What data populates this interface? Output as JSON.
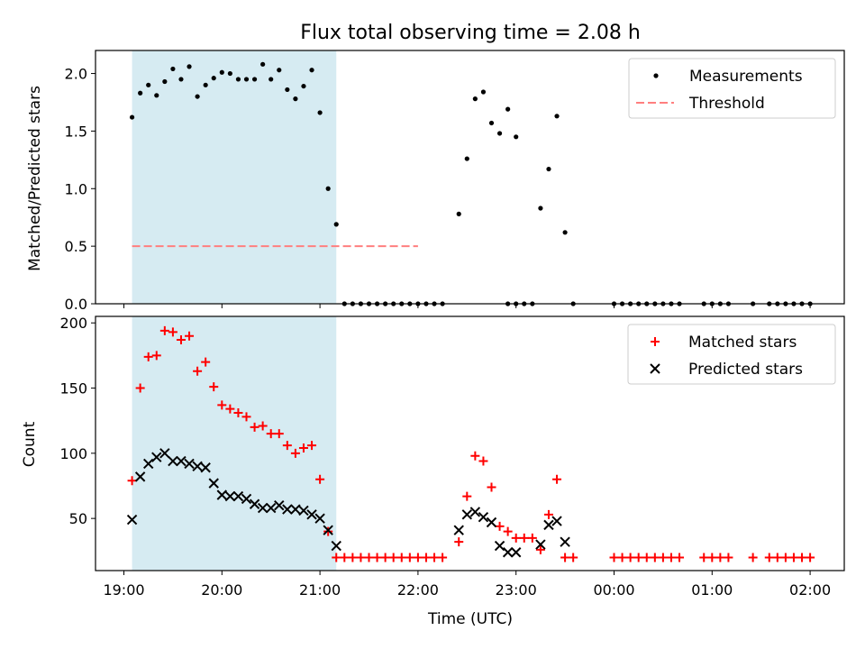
{
  "title": "Flux total observing time = 2.08 h",
  "chart_data": [
    {
      "type": "scatter",
      "ylabel": "Matched/Predicted stars",
      "ylim": [
        0,
        2.2
      ],
      "yticks": [
        0.0,
        0.5,
        1.0,
        1.5,
        2.0
      ],
      "ytick_labels": [
        "0.0",
        "0.5",
        "1.0",
        "1.5",
        "2.0"
      ],
      "legend": {
        "placement": "top-right",
        "entries": [
          "Measurements",
          "Threshold"
        ]
      },
      "highlight_span": [
        "19:05",
        "21:10"
      ],
      "threshold": {
        "value": 0.5,
        "x_range": [
          "19:05",
          "22:00"
        ],
        "color": "#ff7f7f",
        "style": "dashed"
      },
      "series": [
        {
          "name": "Measurements",
          "color": "#000000",
          "marker": "dot",
          "points": [
            [
              "19:05",
              1.62
            ],
            [
              "19:10",
              1.83
            ],
            [
              "19:15",
              1.9
            ],
            [
              "19:20",
              1.81
            ],
            [
              "19:25",
              1.93
            ],
            [
              "19:30",
              2.04
            ],
            [
              "19:35",
              1.95
            ],
            [
              "19:40",
              2.06
            ],
            [
              "19:45",
              1.8
            ],
            [
              "19:50",
              1.9
            ],
            [
              "19:55",
              1.96
            ],
            [
              "20:00",
              2.01
            ],
            [
              "20:05",
              2.0
            ],
            [
              "20:10",
              1.95
            ],
            [
              "20:15",
              1.95
            ],
            [
              "20:20",
              1.95
            ],
            [
              "20:25",
              2.08
            ],
            [
              "20:30",
              1.95
            ],
            [
              "20:35",
              2.03
            ],
            [
              "20:40",
              1.86
            ],
            [
              "20:45",
              1.78
            ],
            [
              "20:50",
              1.89
            ],
            [
              "20:55",
              2.03
            ],
            [
              "21:00",
              1.66
            ],
            [
              "21:05",
              1.0
            ],
            [
              "21:10",
              0.69
            ],
            [
              "21:15",
              0
            ],
            [
              "21:20",
              0
            ],
            [
              "21:25",
              0
            ],
            [
              "21:30",
              0
            ],
            [
              "21:35",
              0
            ],
            [
              "21:40",
              0
            ],
            [
              "21:45",
              0
            ],
            [
              "21:50",
              0
            ],
            [
              "21:55",
              0
            ],
            [
              "22:00",
              0
            ],
            [
              "22:05",
              0
            ],
            [
              "22:10",
              0
            ],
            [
              "22:15",
              0
            ],
            [
              "22:25",
              0.78
            ],
            [
              "22:30",
              1.26
            ],
            [
              "22:35",
              1.78
            ],
            [
              "22:40",
              1.84
            ],
            [
              "22:45",
              1.57
            ],
            [
              "22:50",
              1.48
            ],
            [
              "22:55",
              1.69
            ],
            [
              "23:00",
              1.45
            ],
            [
              "22:55",
              0
            ],
            [
              "23:00",
              0
            ],
            [
              "23:05",
              0
            ],
            [
              "23:10",
              0
            ],
            [
              "23:15",
              0.83
            ],
            [
              "23:20",
              1.17
            ],
            [
              "23:25",
              1.63
            ],
            [
              "23:30",
              0.62
            ],
            [
              "23:35",
              0
            ],
            [
              "00:00",
              0
            ],
            [
              "00:05",
              0
            ],
            [
              "00:10",
              0
            ],
            [
              "00:15",
              0
            ],
            [
              "00:20",
              0
            ],
            [
              "00:25",
              0
            ],
            [
              "00:30",
              0
            ],
            [
              "00:35",
              0
            ],
            [
              "00:40",
              0
            ],
            [
              "00:55",
              0
            ],
            [
              "01:00",
              0
            ],
            [
              "01:05",
              0
            ],
            [
              "01:10",
              0
            ],
            [
              "01:25",
              0
            ],
            [
              "01:35",
              0
            ],
            [
              "01:40",
              0
            ],
            [
              "01:45",
              0
            ],
            [
              "01:50",
              0
            ],
            [
              "01:55",
              0
            ],
            [
              "02:00",
              0
            ]
          ]
        }
      ]
    },
    {
      "type": "scatter",
      "xlabel": "Time (UTC)",
      "ylabel": "Count",
      "ylim": [
        10,
        205
      ],
      "yticks": [
        50,
        100,
        150,
        200
      ],
      "ytick_labels": [
        "50",
        "100",
        "150",
        "200"
      ],
      "xticks": [
        "19:00",
        "20:00",
        "21:00",
        "22:00",
        "23:00",
        "00:00",
        "01:00",
        "02:00"
      ],
      "legend": {
        "placement": "top-right",
        "entries": [
          "Matched stars",
          "Predicted stars"
        ]
      },
      "highlight_span": [
        "19:05",
        "21:10"
      ],
      "series": [
        {
          "name": "Matched stars",
          "color": "#ff0000",
          "marker": "plus",
          "points": [
            [
              "19:05",
              79
            ],
            [
              "19:10",
              150
            ],
            [
              "19:15",
              174
            ],
            [
              "19:20",
              175
            ],
            [
              "19:25",
              194
            ],
            [
              "19:30",
              193
            ],
            [
              "19:35",
              187
            ],
            [
              "19:40",
              190
            ],
            [
              "19:45",
              163
            ],
            [
              "19:50",
              170
            ],
            [
              "19:55",
              151
            ],
            [
              "20:00",
              137
            ],
            [
              "20:05",
              134
            ],
            [
              "20:10",
              131
            ],
            [
              "20:15",
              128
            ],
            [
              "20:20",
              120
            ],
            [
              "20:25",
              121
            ],
            [
              "20:30",
              115
            ],
            [
              "20:35",
              115
            ],
            [
              "20:40",
              106
            ],
            [
              "20:45",
              100
            ],
            [
              "20:50",
              104
            ],
            [
              "20:55",
              106
            ],
            [
              "21:00",
              80
            ],
            [
              "21:05",
              40
            ],
            [
              "21:10",
              20
            ],
            [
              "21:15",
              20
            ],
            [
              "21:20",
              20
            ],
            [
              "21:25",
              20
            ],
            [
              "21:30",
              20
            ],
            [
              "21:35",
              20
            ],
            [
              "21:40",
              20
            ],
            [
              "21:45",
              20
            ],
            [
              "21:50",
              20
            ],
            [
              "21:55",
              20
            ],
            [
              "22:00",
              20
            ],
            [
              "22:05",
              20
            ],
            [
              "22:10",
              20
            ],
            [
              "22:15",
              20
            ],
            [
              "22:25",
              32
            ],
            [
              "22:30",
              67
            ],
            [
              "22:35",
              98
            ],
            [
              "22:40",
              94
            ],
            [
              "22:45",
              74
            ],
            [
              "22:50",
              44
            ],
            [
              "22:55",
              40
            ],
            [
              "23:00",
              35
            ],
            [
              "23:05",
              35
            ],
            [
              "23:10",
              35
            ],
            [
              "23:15",
              26
            ],
            [
              "23:20",
              53
            ],
            [
              "23:25",
              80
            ],
            [
              "23:30",
              20
            ],
            [
              "23:35",
              20
            ],
            [
              "00:00",
              20
            ],
            [
              "00:05",
              20
            ],
            [
              "00:10",
              20
            ],
            [
              "00:15",
              20
            ],
            [
              "00:20",
              20
            ],
            [
              "00:25",
              20
            ],
            [
              "00:30",
              20
            ],
            [
              "00:35",
              20
            ],
            [
              "00:40",
              20
            ],
            [
              "00:55",
              20
            ],
            [
              "01:00",
              20
            ],
            [
              "01:05",
              20
            ],
            [
              "01:10",
              20
            ],
            [
              "01:25",
              20
            ],
            [
              "01:35",
              20
            ],
            [
              "01:40",
              20
            ],
            [
              "01:45",
              20
            ],
            [
              "01:50",
              20
            ],
            [
              "01:55",
              20
            ],
            [
              "02:00",
              20
            ]
          ]
        },
        {
          "name": "Predicted stars",
          "color": "#000000",
          "marker": "x",
          "points": [
            [
              "19:05",
              49
            ],
            [
              "19:10",
              82
            ],
            [
              "19:15",
              92
            ],
            [
              "19:20",
              97
            ],
            [
              "19:25",
              100
            ],
            [
              "19:30",
              94
            ],
            [
              "19:35",
              94
            ],
            [
              "19:40",
              92
            ],
            [
              "19:45",
              90
            ],
            [
              "19:50",
              89
            ],
            [
              "19:55",
              77
            ],
            [
              "20:00",
              68
            ],
            [
              "20:05",
              67
            ],
            [
              "20:10",
              67
            ],
            [
              "20:15",
              65
            ],
            [
              "20:20",
              61
            ],
            [
              "20:25",
              58
            ],
            [
              "20:30",
              58
            ],
            [
              "20:35",
              60
            ],
            [
              "20:40",
              57
            ],
            [
              "20:45",
              57
            ],
            [
              "20:50",
              56
            ],
            [
              "20:55",
              53
            ],
            [
              "21:00",
              50
            ],
            [
              "21:05",
              41
            ],
            [
              "21:10",
              29
            ],
            [
              "22:25",
              41
            ],
            [
              "22:30",
              53
            ],
            [
              "22:35",
              55
            ],
            [
              "22:40",
              51
            ],
            [
              "22:45",
              47
            ],
            [
              "22:50",
              29
            ],
            [
              "22:55",
              24
            ],
            [
              "23:00",
              24
            ],
            [
              "23:15",
              30
            ],
            [
              "23:20",
              45
            ],
            [
              "23:25",
              48
            ],
            [
              "23:30",
              32
            ]
          ]
        }
      ]
    }
  ]
}
